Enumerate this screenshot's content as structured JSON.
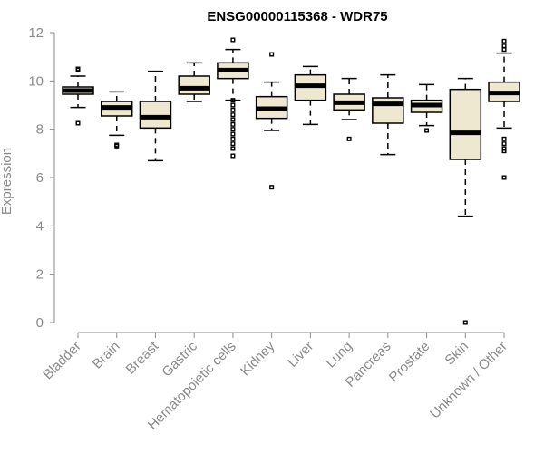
{
  "chart_data": {
    "type": "boxplot",
    "title": "ENSG00000115368 - WDR75",
    "ylabel": "Expression",
    "xlabel": "",
    "ylim": [
      0,
      12
    ],
    "yticks": [
      0,
      2,
      4,
      6,
      8,
      10,
      12
    ],
    "grid": false,
    "box_color": "#efe8d0",
    "categories": [
      "Bladder",
      "Brain",
      "Breast",
      "Gastric",
      "Hematopoietic cells",
      "Kidney",
      "Liver",
      "Lung",
      "Pancreas",
      "Prostate",
      "Skin",
      "Unknown / Other"
    ],
    "boxes": [
      {
        "whisker_low": 8.9,
        "q1": 9.45,
        "median": 9.6,
        "q3": 9.75,
        "whisker_high": 10.2,
        "outliers": [
          8.25,
          10.45,
          10.5
        ]
      },
      {
        "whisker_low": 7.75,
        "q1": 8.55,
        "median": 8.9,
        "q3": 9.15,
        "whisker_high": 9.55,
        "outliers": [
          7.3,
          7.35
        ]
      },
      {
        "whisker_low": 6.7,
        "q1": 8.05,
        "median": 8.5,
        "q3": 9.15,
        "whisker_high": 10.4,
        "outliers": []
      },
      {
        "whisker_low": 9.15,
        "q1": 9.45,
        "median": 9.7,
        "q3": 10.2,
        "whisker_high": 10.75,
        "outliers": []
      },
      {
        "whisker_low": 9.2,
        "q1": 10.1,
        "median": 10.45,
        "q3": 10.75,
        "whisker_high": 11.3,
        "outliers": [
          11.7,
          9.2,
          9.0,
          8.8,
          8.6,
          8.4,
          8.2,
          8.0,
          7.8,
          7.6,
          7.4,
          7.2,
          6.9
        ]
      },
      {
        "whisker_low": 7.95,
        "q1": 8.45,
        "median": 8.85,
        "q3": 9.35,
        "whisker_high": 9.95,
        "outliers": [
          11.1,
          5.6
        ]
      },
      {
        "whisker_low": 8.2,
        "q1": 9.2,
        "median": 9.8,
        "q3": 10.25,
        "whisker_high": 10.6,
        "outliers": []
      },
      {
        "whisker_low": 8.4,
        "q1": 8.8,
        "median": 9.1,
        "q3": 9.45,
        "whisker_high": 10.1,
        "outliers": [
          7.6
        ]
      },
      {
        "whisker_low": 6.95,
        "q1": 8.25,
        "median": 9.05,
        "q3": 9.3,
        "whisker_high": 10.25,
        "outliers": []
      },
      {
        "whisker_low": 8.15,
        "q1": 8.7,
        "median": 9.0,
        "q3": 9.2,
        "whisker_high": 9.85,
        "outliers": [
          7.95
        ]
      },
      {
        "whisker_low": 4.4,
        "q1": 6.75,
        "median": 7.85,
        "q3": 9.65,
        "whisker_high": 10.1,
        "outliers": [
          0.0
        ]
      },
      {
        "whisker_low": 8.05,
        "q1": 9.15,
        "median": 9.5,
        "q3": 9.95,
        "whisker_high": 11.15,
        "outliers": [
          11.65,
          11.45,
          11.3,
          7.6,
          7.4,
          7.2,
          7.1,
          6.0
        ]
      }
    ]
  }
}
